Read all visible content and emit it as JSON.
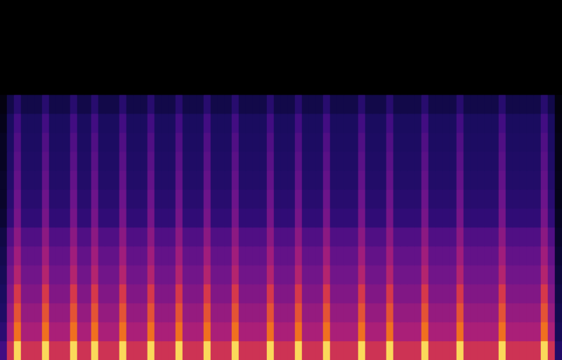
{
  "chart_data": {
    "type": "heatmap",
    "tick_labels": false,
    "grid": false,
    "color_range": [
      0,
      100
    ],
    "cells": [
      [
        35,
        64,
        93,
        64,
        64,
        64,
        93,
        64,
        64,
        64,
        93,
        64,
        64,
        93,
        64,
        64,
        64,
        93,
        64,
        64,
        64,
        93,
        64,
        64,
        64,
        93,
        64,
        64,
        64,
        93,
        64,
        64,
        64,
        93,
        64,
        64,
        64,
        64,
        93,
        64,
        64,
        64,
        93,
        64,
        64,
        64,
        93,
        64,
        64,
        64,
        64,
        93,
        64,
        64,
        64,
        93,
        64,
        64,
        64,
        64,
        93,
        64,
        64,
        64,
        64,
        93,
        64,
        64,
        64,
        64,
        64,
        93,
        64,
        64,
        64,
        64,
        64,
        93,
        64,
        25
      ],
      [
        28,
        56,
        76,
        56,
        56,
        56,
        76,
        56,
        56,
        56,
        76,
        56,
        56,
        76,
        56,
        56,
        56,
        76,
        56,
        56,
        56,
        76,
        56,
        56,
        56,
        76,
        56,
        56,
        56,
        76,
        56,
        56,
        56,
        76,
        56,
        56,
        56,
        56,
        76,
        56,
        56,
        56,
        76,
        56,
        56,
        56,
        76,
        56,
        56,
        56,
        56,
        76,
        56,
        56,
        56,
        76,
        56,
        56,
        56,
        56,
        76,
        56,
        56,
        56,
        56,
        76,
        56,
        56,
        56,
        56,
        56,
        76,
        56,
        56,
        56,
        56,
        56,
        76,
        56,
        20
      ],
      [
        24,
        52,
        71,
        52,
        52,
        52,
        71,
        52,
        52,
        52,
        71,
        52,
        52,
        71,
        52,
        52,
        52,
        71,
        52,
        52,
        52,
        71,
        52,
        52,
        52,
        71,
        52,
        52,
        52,
        71,
        52,
        52,
        52,
        71,
        52,
        52,
        52,
        52,
        71,
        52,
        52,
        52,
        71,
        52,
        52,
        52,
        71,
        52,
        52,
        52,
        52,
        71,
        52,
        52,
        52,
        71,
        52,
        52,
        52,
        52,
        71,
        52,
        52,
        52,
        52,
        71,
        52,
        52,
        52,
        52,
        52,
        71,
        52,
        52,
        52,
        52,
        52,
        71,
        52,
        18
      ],
      [
        22,
        48,
        66,
        48,
        48,
        48,
        66,
        48,
        48,
        48,
        66,
        48,
        48,
        66,
        48,
        48,
        48,
        66,
        48,
        48,
        48,
        66,
        48,
        48,
        48,
        66,
        48,
        48,
        48,
        66,
        48,
        48,
        48,
        66,
        48,
        48,
        48,
        48,
        66,
        48,
        48,
        48,
        66,
        48,
        48,
        48,
        66,
        48,
        48,
        48,
        48,
        66,
        48,
        48,
        48,
        66,
        48,
        48,
        48,
        48,
        66,
        48,
        48,
        48,
        48,
        66,
        48,
        48,
        48,
        48,
        48,
        66,
        48,
        48,
        48,
        48,
        48,
        66,
        48,
        16
      ],
      [
        20,
        45,
        58,
        45,
        45,
        45,
        58,
        45,
        45,
        45,
        58,
        45,
        45,
        58,
        45,
        45,
        45,
        58,
        45,
        45,
        45,
        58,
        45,
        45,
        45,
        58,
        45,
        45,
        45,
        58,
        45,
        45,
        45,
        58,
        45,
        45,
        45,
        45,
        58,
        45,
        45,
        45,
        58,
        45,
        45,
        45,
        58,
        45,
        45,
        45,
        45,
        58,
        45,
        45,
        45,
        58,
        45,
        45,
        45,
        45,
        58,
        45,
        45,
        45,
        45,
        58,
        45,
        45,
        45,
        45,
        45,
        58,
        45,
        45,
        45,
        45,
        45,
        58,
        45,
        14
      ],
      [
        18,
        42,
        54,
        42,
        42,
        42,
        54,
        42,
        42,
        42,
        54,
        42,
        42,
        54,
        42,
        42,
        42,
        54,
        42,
        42,
        42,
        54,
        42,
        42,
        42,
        54,
        42,
        42,
        42,
        54,
        42,
        42,
        42,
        54,
        42,
        42,
        42,
        42,
        54,
        42,
        42,
        42,
        54,
        42,
        42,
        42,
        54,
        42,
        42,
        42,
        42,
        54,
        42,
        42,
        42,
        54,
        42,
        42,
        42,
        42,
        54,
        42,
        42,
        42,
        42,
        54,
        42,
        42,
        42,
        42,
        42,
        54,
        42,
        42,
        42,
        42,
        42,
        54,
        42,
        12
      ],
      [
        16,
        38,
        50,
        38,
        38,
        38,
        50,
        38,
        38,
        38,
        50,
        38,
        38,
        50,
        38,
        38,
        38,
        50,
        38,
        38,
        38,
        50,
        38,
        38,
        38,
        50,
        38,
        38,
        38,
        50,
        38,
        38,
        38,
        50,
        38,
        38,
        38,
        38,
        50,
        38,
        38,
        38,
        50,
        38,
        38,
        38,
        50,
        38,
        38,
        38,
        38,
        50,
        38,
        38,
        38,
        50,
        38,
        38,
        38,
        38,
        50,
        38,
        38,
        38,
        38,
        50,
        38,
        38,
        38,
        38,
        38,
        50,
        38,
        38,
        38,
        38,
        38,
        50,
        38,
        10
      ],
      [
        12,
        30,
        46,
        30,
        30,
        30,
        46,
        30,
        30,
        30,
        46,
        30,
        30,
        46,
        30,
        30,
        30,
        46,
        30,
        30,
        30,
        46,
        30,
        30,
        30,
        46,
        30,
        30,
        30,
        46,
        30,
        30,
        30,
        46,
        30,
        30,
        30,
        30,
        46,
        30,
        30,
        30,
        46,
        30,
        30,
        30,
        46,
        30,
        30,
        30,
        30,
        46,
        30,
        30,
        30,
        46,
        30,
        30,
        30,
        30,
        46,
        30,
        30,
        30,
        30,
        46,
        30,
        30,
        30,
        30,
        30,
        46,
        30,
        30,
        30,
        30,
        30,
        46,
        30,
        8
      ],
      [
        10,
        27,
        44,
        27,
        27,
        27,
        44,
        27,
        27,
        27,
        44,
        27,
        27,
        44,
        27,
        27,
        27,
        44,
        27,
        27,
        27,
        44,
        27,
        27,
        27,
        44,
        27,
        27,
        27,
        44,
        27,
        27,
        27,
        44,
        27,
        27,
        27,
        27,
        44,
        27,
        27,
        27,
        44,
        27,
        27,
        27,
        44,
        27,
        27,
        27,
        27,
        44,
        27,
        27,
        27,
        44,
        27,
        27,
        27,
        27,
        44,
        27,
        27,
        27,
        27,
        44,
        27,
        27,
        27,
        27,
        27,
        44,
        27,
        27,
        27,
        27,
        27,
        44,
        27,
        6
      ],
      [
        10,
        25,
        42,
        25,
        25,
        25,
        42,
        25,
        25,
        25,
        42,
        25,
        25,
        42,
        25,
        25,
        25,
        42,
        25,
        25,
        25,
        42,
        25,
        25,
        25,
        42,
        25,
        25,
        25,
        42,
        25,
        25,
        25,
        42,
        25,
        25,
        25,
        25,
        42,
        25,
        25,
        25,
        42,
        25,
        25,
        25,
        42,
        25,
        25,
        25,
        25,
        42,
        25,
        25,
        25,
        42,
        25,
        25,
        25,
        25,
        42,
        25,
        25,
        25,
        25,
        42,
        25,
        25,
        25,
        25,
        25,
        42,
        25,
        25,
        25,
        25,
        25,
        42,
        25,
        6
      ],
      [
        8,
        24,
        40,
        24,
        24,
        24,
        40,
        24,
        24,
        24,
        40,
        24,
        24,
        40,
        24,
        24,
        24,
        40,
        24,
        24,
        24,
        40,
        24,
        24,
        24,
        40,
        24,
        24,
        24,
        40,
        24,
        24,
        24,
        40,
        24,
        24,
        24,
        24,
        40,
        24,
        24,
        24,
        40,
        24,
        24,
        24,
        40,
        24,
        24,
        24,
        24,
        40,
        24,
        24,
        24,
        40,
        24,
        24,
        24,
        24,
        40,
        24,
        24,
        24,
        24,
        40,
        24,
        24,
        24,
        24,
        24,
        40,
        24,
        24,
        24,
        24,
        24,
        40,
        24,
        5
      ],
      [
        8,
        23,
        38,
        23,
        23,
        23,
        38,
        23,
        23,
        23,
        38,
        23,
        23,
        38,
        23,
        23,
        23,
        38,
        23,
        23,
        23,
        38,
        23,
        23,
        23,
        38,
        23,
        23,
        23,
        38,
        23,
        23,
        23,
        38,
        23,
        23,
        23,
        23,
        38,
        23,
        23,
        23,
        38,
        23,
        23,
        23,
        38,
        23,
        23,
        23,
        23,
        38,
        23,
        23,
        23,
        38,
        23,
        23,
        23,
        23,
        38,
        23,
        23,
        23,
        23,
        38,
        23,
        23,
        23,
        23,
        23,
        38,
        23,
        23,
        23,
        23,
        23,
        38,
        23,
        5
      ],
      [
        6,
        22,
        35,
        22,
        22,
        22,
        35,
        22,
        22,
        22,
        35,
        22,
        22,
        35,
        22,
        22,
        22,
        35,
        22,
        22,
        22,
        35,
        22,
        22,
        22,
        35,
        22,
        22,
        22,
        35,
        22,
        22,
        22,
        35,
        22,
        22,
        22,
        22,
        35,
        22,
        22,
        22,
        35,
        22,
        22,
        22,
        35,
        22,
        22,
        22,
        22,
        35,
        22,
        22,
        22,
        35,
        22,
        22,
        22,
        22,
        35,
        22,
        22,
        22,
        22,
        35,
        22,
        22,
        22,
        22,
        22,
        35,
        22,
        22,
        22,
        22,
        22,
        35,
        22,
        4
      ],
      [
        4,
        17,
        27,
        17,
        17,
        17,
        27,
        17,
        17,
        17,
        27,
        17,
        17,
        27,
        17,
        17,
        17,
        27,
        17,
        17,
        17,
        27,
        17,
        17,
        17,
        27,
        17,
        17,
        17,
        27,
        17,
        17,
        17,
        27,
        17,
        17,
        17,
        17,
        27,
        17,
        17,
        17,
        27,
        17,
        17,
        17,
        27,
        17,
        17,
        17,
        17,
        27,
        17,
        17,
        17,
        27,
        17,
        17,
        17,
        17,
        27,
        17,
        17,
        17,
        17,
        27,
        17,
        17,
        17,
        17,
        17,
        27,
        17,
        17,
        17,
        17,
        17,
        27,
        17,
        3
      ],
      [
        0,
        0,
        0,
        0,
        0,
        0,
        0,
        0,
        0,
        0,
        0,
        0,
        0,
        0,
        0,
        0,
        0,
        0,
        0,
        0,
        0,
        0,
        0,
        0,
        0,
        0,
        0,
        0,
        0,
        0,
        0,
        0,
        0,
        0,
        0,
        0,
        0,
        0,
        0,
        0,
        0,
        0,
        0,
        0,
        0,
        0,
        0,
        0,
        0,
        0,
        0,
        0,
        0,
        0,
        0,
        0,
        0,
        0,
        0,
        0,
        0,
        0,
        0,
        0,
        0,
        0,
        0,
        0,
        0,
        0,
        0,
        0,
        0,
        0,
        0,
        0,
        0,
        0,
        0,
        0
      ],
      [
        0,
        0,
        0,
        0,
        0,
        0,
        0,
        0,
        0,
        0,
        0,
        0,
        0,
        0,
        0,
        0,
        0,
        0,
        0,
        0,
        0,
        0,
        0,
        0,
        0,
        0,
        0,
        0,
        0,
        0,
        0,
        0,
        0,
        0,
        0,
        0,
        0,
        0,
        0,
        0,
        0,
        0,
        0,
        0,
        0,
        0,
        0,
        0,
        0,
        0,
        0,
        0,
        0,
        0,
        0,
        0,
        0,
        0,
        0,
        0,
        0,
        0,
        0,
        0,
        0,
        0,
        0,
        0,
        0,
        0,
        0,
        0,
        0,
        0,
        0,
        0,
        0,
        0,
        0,
        0
      ],
      [
        0,
        0,
        0,
        0,
        0,
        0,
        0,
        0,
        0,
        0,
        0,
        0,
        0,
        0,
        0,
        0,
        0,
        0,
        0,
        0,
        0,
        0,
        0,
        0,
        0,
        0,
        0,
        0,
        0,
        0,
        0,
        0,
        0,
        0,
        0,
        0,
        0,
        0,
        0,
        0,
        0,
        0,
        0,
        0,
        0,
        0,
        0,
        0,
        0,
        0,
        0,
        0,
        0,
        0,
        0,
        0,
        0,
        0,
        0,
        0,
        0,
        0,
        0,
        0,
        0,
        0,
        0,
        0,
        0,
        0,
        0,
        0,
        0,
        0,
        0,
        0,
        0,
        0,
        0,
        0
      ],
      [
        0,
        0,
        0,
        0,
        0,
        0,
        0,
        0,
        0,
        0,
        0,
        0,
        0,
        0,
        0,
        0,
        0,
        0,
        0,
        0,
        0,
        0,
        0,
        0,
        0,
        0,
        0,
        0,
        0,
        0,
        0,
        0,
        0,
        0,
        0,
        0,
        0,
        0,
        0,
        0,
        0,
        0,
        0,
        0,
        0,
        0,
        0,
        0,
        0,
        0,
        0,
        0,
        0,
        0,
        0,
        0,
        0,
        0,
        0,
        0,
        0,
        0,
        0,
        0,
        0,
        0,
        0,
        0,
        0,
        0,
        0,
        0,
        0,
        0,
        0,
        0,
        0,
        0,
        0,
        0
      ],
      [
        0,
        0,
        0,
        0,
        0,
        0,
        0,
        0,
        0,
        0,
        0,
        0,
        0,
        0,
        0,
        0,
        0,
        0,
        0,
        0,
        0,
        0,
        0,
        0,
        0,
        0,
        0,
        0,
        0,
        0,
        0,
        0,
        0,
        0,
        0,
        0,
        0,
        0,
        0,
        0,
        0,
        0,
        0,
        0,
        0,
        0,
        0,
        0,
        0,
        0,
        0,
        0,
        0,
        0,
        0,
        0,
        0,
        0,
        0,
        0,
        0,
        0,
        0,
        0,
        0,
        0,
        0,
        0,
        0,
        0,
        0,
        0,
        0,
        0,
        0,
        0,
        0,
        0,
        0,
        0
      ]
    ]
  }
}
